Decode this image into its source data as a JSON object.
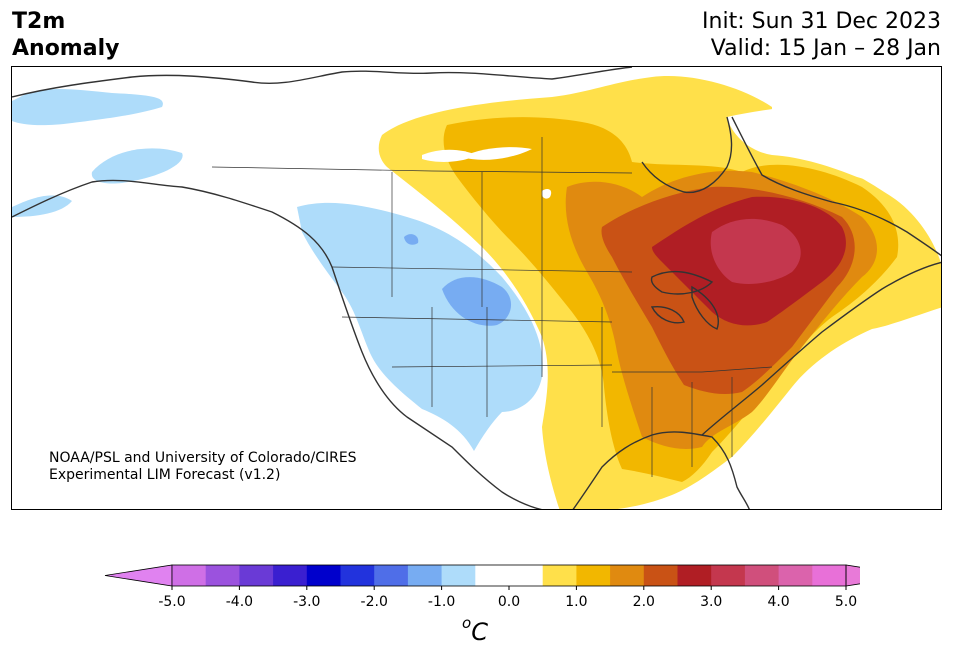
{
  "header": {
    "title_line1": "T2m",
    "title_line2": "Anomaly",
    "init": "Init: Sun 31 Dec 2023",
    "valid": "Valid: 15 Jan – 28 Jan"
  },
  "credit": {
    "line1": "NOAA/PSL and University of Colorado/CIRES",
    "line2": "Experimental LIM Forecast (v1.2)"
  },
  "colorbar": {
    "unit_prefix": "o",
    "unit": "C",
    "colors": [
      "#cf6fe6",
      "#9b52de",
      "#6a3ad6",
      "#3a1fd0",
      "#0000cc",
      "#2233dd",
      "#4f6ee8",
      "#77acf2",
      "#aedcfa",
      "#ffffff",
      "#ffffff",
      "#ffe04a",
      "#f2b700",
      "#e08a10",
      "#c95215",
      "#b01e24",
      "#c4374e",
      "#d04f7c",
      "#db63ac",
      "#e870d8"
    ],
    "under_color": "#e082f0",
    "over_color": "#e87ad8",
    "ticks": [
      "-5.0",
      "-4.0",
      "-3.0",
      "-2.0",
      "-1.0",
      "0.0",
      "1.0",
      "2.0",
      "3.0",
      "4.0",
      "5.0"
    ]
  }
}
